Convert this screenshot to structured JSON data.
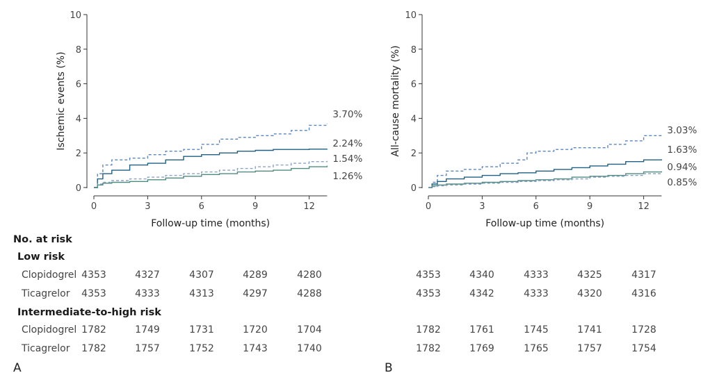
{
  "chart_data": [
    {
      "type": "line",
      "panel": "A",
      "ylabel": "Ischemic events (%)",
      "xlabel": "Follow-up time (months)",
      "xlim": [
        0,
        13
      ],
      "ylim": [
        0,
        10
      ],
      "xticks": [
        0,
        3,
        6,
        9,
        12
      ],
      "yticks": [
        0,
        2,
        4,
        6,
        8,
        10
      ],
      "grid": false,
      "series": [
        {
          "color": "#5a86c0",
          "style": "dashed",
          "end_label": "3.70%",
          "x": [
            0,
            0.2,
            0.5,
            1,
            2,
            3,
            4,
            5,
            6,
            7,
            8,
            9,
            10,
            11,
            12,
            13
          ],
          "y": [
            0,
            0.8,
            1.3,
            1.6,
            1.7,
            1.9,
            2.1,
            2.2,
            2.5,
            2.8,
            2.9,
            3.0,
            3.1,
            3.3,
            3.6,
            3.7
          ]
        },
        {
          "color": "#1f5f82",
          "style": "solid",
          "end_label": "2.24%",
          "x": [
            0,
            0.2,
            0.5,
            1,
            2,
            3,
            4,
            5,
            6,
            7,
            8,
            9,
            10,
            11,
            12,
            13
          ],
          "y": [
            0,
            0.5,
            0.8,
            1.0,
            1.3,
            1.4,
            1.6,
            1.8,
            1.9,
            2.0,
            2.1,
            2.15,
            2.2,
            2.2,
            2.22,
            2.24
          ]
        },
        {
          "color": "#8aa2c4",
          "style": "dashed",
          "end_label": "1.54%",
          "x": [
            0,
            0.2,
            0.5,
            1,
            2,
            3,
            4,
            5,
            6,
            7,
            8,
            9,
            10,
            11,
            12,
            13
          ],
          "y": [
            0,
            0.2,
            0.3,
            0.4,
            0.5,
            0.6,
            0.7,
            0.8,
            0.9,
            1.0,
            1.1,
            1.2,
            1.3,
            1.4,
            1.5,
            1.54
          ]
        },
        {
          "color": "#4f8a7e",
          "style": "solid",
          "end_label": "1.26%",
          "x": [
            0,
            0.2,
            0.5,
            1,
            2,
            3,
            4,
            5,
            6,
            7,
            8,
            9,
            10,
            11,
            12,
            13
          ],
          "y": [
            0,
            0.15,
            0.25,
            0.3,
            0.35,
            0.45,
            0.55,
            0.65,
            0.75,
            0.8,
            0.9,
            0.95,
            1.0,
            1.1,
            1.2,
            1.26
          ]
        }
      ]
    },
    {
      "type": "line",
      "panel": "B",
      "ylabel": "All-cause mortality (%)",
      "xlabel": "Follow-up time (months)",
      "xlim": [
        0,
        13
      ],
      "ylim": [
        0,
        10
      ],
      "xticks": [
        0,
        3,
        6,
        9,
        12
      ],
      "yticks": [
        0,
        2,
        4,
        6,
        8,
        10
      ],
      "grid": false,
      "series": [
        {
          "color": "#5a86c0",
          "style": "dashed",
          "end_label": "3.03%",
          "x": [
            0,
            0.2,
            0.5,
            1,
            2,
            3,
            4,
            5,
            5.5,
            6,
            7,
            8,
            9,
            10,
            11,
            12,
            13
          ],
          "y": [
            0,
            0.3,
            0.7,
            0.95,
            1.05,
            1.2,
            1.4,
            1.6,
            2.0,
            2.1,
            2.2,
            2.3,
            2.3,
            2.5,
            2.7,
            3.0,
            3.03
          ]
        },
        {
          "color": "#1f5f82",
          "style": "solid",
          "end_label": "1.63%",
          "x": [
            0,
            0.2,
            0.5,
            1,
            2,
            3,
            4,
            5,
            6,
            7,
            8,
            9,
            10,
            11,
            12,
            13
          ],
          "y": [
            0,
            0.2,
            0.35,
            0.5,
            0.6,
            0.7,
            0.8,
            0.85,
            0.95,
            1.05,
            1.15,
            1.25,
            1.35,
            1.5,
            1.6,
            1.63
          ]
        },
        {
          "color": "#4f8a7e",
          "style": "solid",
          "end_label": "0.94%",
          "x": [
            0,
            0.2,
            0.5,
            1,
            2,
            3,
            4,
            5,
            6,
            7,
            8,
            9,
            10,
            11,
            12,
            13
          ],
          "y": [
            0,
            0.1,
            0.15,
            0.2,
            0.25,
            0.3,
            0.35,
            0.4,
            0.45,
            0.5,
            0.6,
            0.65,
            0.7,
            0.8,
            0.9,
            0.94
          ]
        },
        {
          "color": "#7f9cbf",
          "style": "dashed",
          "end_label": "0.85%",
          "x": [
            0,
            0.2,
            0.5,
            1,
            2,
            3,
            4,
            5,
            6,
            7,
            8,
            9,
            10,
            11,
            12,
            13
          ],
          "y": [
            0,
            0.05,
            0.1,
            0.15,
            0.2,
            0.25,
            0.3,
            0.35,
            0.4,
            0.45,
            0.5,
            0.6,
            0.65,
            0.7,
            0.8,
            0.85
          ]
        }
      ]
    }
  ],
  "risk_table": {
    "title": "No. at risk",
    "low_risk_label": "Low risk",
    "intermediate_label": "Intermediate-to-high risk",
    "clopidogrel_label": "Clopidogrel",
    "ticagrelor_label": "Ticagrelor",
    "panel_a": {
      "low": {
        "clopidogrel": [
          "4353",
          "4327",
          "4307",
          "4289",
          "4280"
        ],
        "ticagrelor": [
          "4353",
          "4333",
          "4313",
          "4297",
          "4288"
        ]
      },
      "high": {
        "clopidogrel": [
          "1782",
          "1749",
          "1731",
          "1720",
          "1704"
        ],
        "ticagrelor": [
          "1782",
          "1757",
          "1752",
          "1743",
          "1740"
        ]
      }
    },
    "panel_b": {
      "low": {
        "clopidogrel": [
          "4353",
          "4340",
          "4333",
          "4325",
          "4317"
        ],
        "ticagrelor": [
          "4353",
          "4342",
          "4333",
          "4320",
          "4316"
        ]
      },
      "high": {
        "clopidogrel": [
          "1782",
          "1761",
          "1745",
          "1741",
          "1728"
        ],
        "ticagrelor": [
          "1782",
          "1769",
          "1765",
          "1757",
          "1754"
        ]
      }
    }
  },
  "panel_letters": {
    "a": "A",
    "b": "B"
  }
}
